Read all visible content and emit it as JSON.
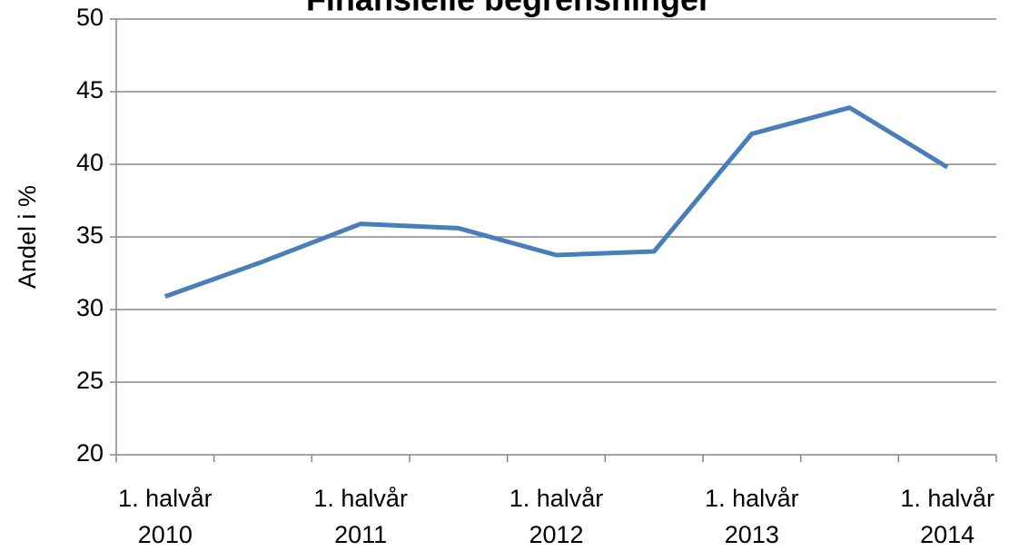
{
  "chart_data": {
    "type": "line",
    "title": "Finansielle begrensninger",
    "y_label": "Andel i %",
    "categories": [
      "1. halvår 2010",
      null,
      "1. halvår 2011",
      null,
      "1. halvår 2012",
      null,
      "1. halvår 2013",
      null,
      "1. halvår 2014"
    ],
    "series": [
      {
        "name": "Andel",
        "color": "#4a7ebb",
        "values": [
          30.9,
          33.3,
          35.9,
          35.6,
          33.75,
          34.0,
          42.1,
          43.9,
          39.8
        ]
      }
    ],
    "ylim": [
      20,
      50
    ],
    "yticks": [
      20,
      25,
      30,
      35,
      40,
      45,
      50
    ],
    "grid": true
  }
}
